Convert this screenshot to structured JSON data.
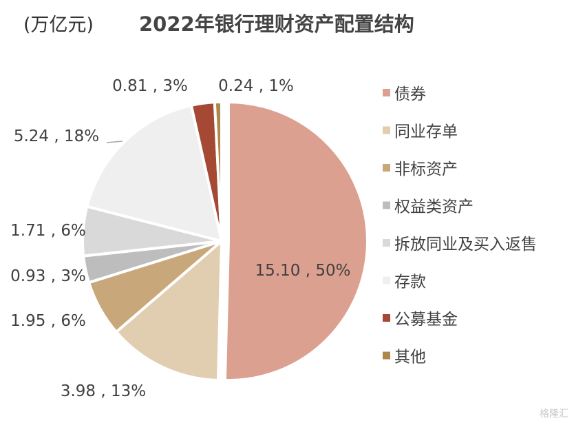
{
  "unit_label": "(万亿元)",
  "watermark": "格隆汇",
  "chart_data": {
    "type": "pie",
    "title": "2022年银行理财资产配置结构",
    "unit": "(万亿元)",
    "legend_position": "right",
    "slices": [
      {
        "name": "债券",
        "value": 15.1,
        "percent": 50,
        "label": "15.10 , 50%",
        "color": "#DBA08F"
      },
      {
        "name": "同业存单",
        "value": 3.98,
        "percent": 13,
        "label": "3.98 , 13%",
        "color": "#E1CDB0"
      },
      {
        "name": "非标资产",
        "value": 1.95,
        "percent": 6,
        "label": "1.95 , 6%",
        "color": "#C8A77A"
      },
      {
        "name": "权益类资产",
        "value": 0.93,
        "percent": 3,
        "label": "0.93 , 3%",
        "color": "#BDBDBD"
      },
      {
        "name": "拆放同业及买入返售",
        "value": 1.71,
        "percent": 6,
        "label": "1.71 , 6%",
        "color": "#D9D9D9"
      },
      {
        "name": "存款",
        "value": 5.24,
        "percent": 18,
        "label": "5.24 , 18%",
        "color": "#EFEFEF"
      },
      {
        "name": "公募基金",
        "value": 0.81,
        "percent": 3,
        "label": "0.81 , 3%",
        "color": "#A54934"
      },
      {
        "name": "其他",
        "value": 0.24,
        "percent": 1,
        "label": "0.24 , 1%",
        "color": "#B08749"
      }
    ]
  }
}
